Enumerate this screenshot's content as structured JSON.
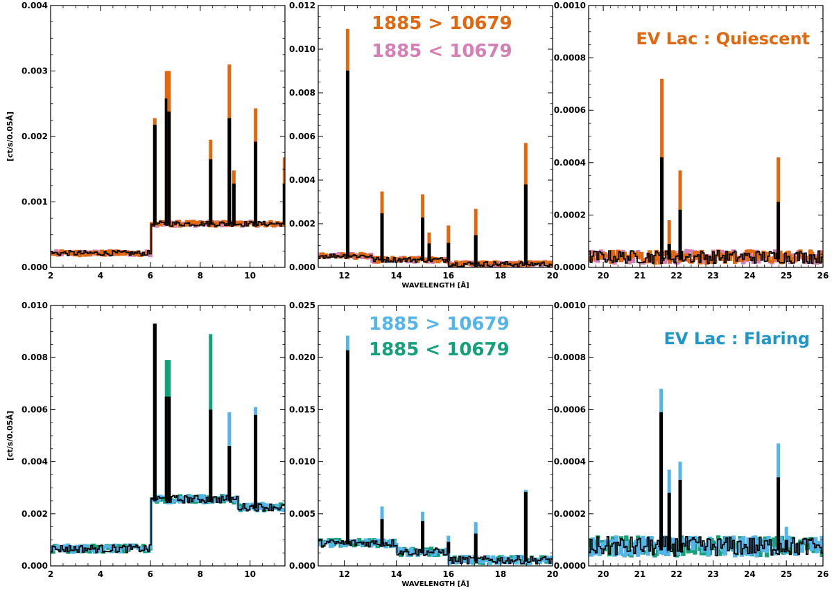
{
  "colors": {
    "orange": "#e1680f",
    "pink": "#d67fb4",
    "blue": "#55b4e8",
    "green": "#13a07a",
    "title_orange": "#e1680f",
    "title_blue": "#1f96c9",
    "black": "#000000"
  },
  "legend_quiescent": {
    "line1": "1885 > 10679",
    "line2": "1885 < 10679"
  },
  "legend_flaring": {
    "line1": "1885 > 10679",
    "line2": "1885 < 10679"
  },
  "title_quiescent": "EV Lac : Quiescent",
  "title_flaring": "EV Lac : Flaring",
  "chart_data": [
    {
      "type": "line",
      "row": "quiescent",
      "xlim": [
        2,
        11.4
      ],
      "ylim": [
        0,
        0.004
      ],
      "xticks": [
        "2",
        "4",
        "6",
        "8",
        "10"
      ],
      "yticks": [
        "0.000",
        "0.001",
        "0.002",
        "0.003",
        "0.004"
      ],
      "ylabel": "[ct/s/0.05Å]",
      "xlabel": "",
      "baseline": 0.0002,
      "peaks": [
        {
          "x": 6.18,
          "color": "orange",
          "top": 0.00228,
          "black": 0.00218
        },
        {
          "x": 6.65,
          "color": "orange",
          "top": 0.003,
          "black": 0.00258
        },
        {
          "x": 6.75,
          "color": "orange",
          "top": 0.003,
          "black": 0.00238
        },
        {
          "x": 8.42,
          "color": "orange",
          "top": 0.00195,
          "black": 0.00165
        },
        {
          "x": 9.17,
          "color": "orange",
          "top": 0.0031,
          "black": 0.00228
        },
        {
          "x": 9.35,
          "color": "orange",
          "top": 0.00148,
          "black": 0.00128
        },
        {
          "x": 10.22,
          "color": "orange",
          "top": 0.00243,
          "black": 0.00192
        },
        {
          "x": 11.38,
          "color": "orange",
          "top": 0.00168,
          "black": 0.00128
        }
      ]
    },
    {
      "type": "line",
      "row": "quiescent",
      "xlim": [
        11,
        20
      ],
      "ylim": [
        0,
        0.012
      ],
      "xticks": [
        "12",
        "14",
        "16",
        "18",
        "20"
      ],
      "yticks": [
        "0.000",
        "0.002",
        "0.004",
        "0.006",
        "0.008",
        "0.010",
        "0.012"
      ],
      "xlabel": "WAVELENGTH [Å]",
      "baseline": 0.0003,
      "peaks": [
        {
          "x": 12.13,
          "color": "orange",
          "top": 0.01093,
          "black": 0.00902
        },
        {
          "x": 13.45,
          "color": "orange",
          "top": 0.00348,
          "black": 0.00248
        },
        {
          "x": 15.01,
          "color": "orange",
          "top": 0.00335,
          "black": 0.00228
        },
        {
          "x": 15.26,
          "color": "orange",
          "top": 0.0016,
          "black": 0.0011
        },
        {
          "x": 16.0,
          "color": "orange",
          "top": 0.00192,
          "black": 0.00112
        },
        {
          "x": 17.05,
          "color": "orange",
          "top": 0.00268,
          "black": 0.00148
        },
        {
          "x": 18.97,
          "color": "orange",
          "top": 0.0057,
          "black": 0.0038
        }
      ]
    },
    {
      "type": "line",
      "row": "quiescent",
      "xlim": [
        19.6,
        26
      ],
      "ylim": [
        0,
        0.001
      ],
      "xticks": [
        "20",
        "21",
        "22",
        "23",
        "24",
        "25",
        "26"
      ],
      "yticks": [
        "0.0000",
        "0.0002",
        "0.0004",
        "0.0006",
        "0.0008",
        "0.0010"
      ],
      "xlabel": "",
      "baseline": 3e-05,
      "peaks": [
        {
          "x": 21.6,
          "color": "orange",
          "top": 0.00072,
          "black": 0.00042
        },
        {
          "x": 21.8,
          "color": "orange",
          "top": 0.00018,
          "black": 9e-05
        },
        {
          "x": 22.1,
          "color": "orange",
          "top": 0.00037,
          "black": 0.00022
        },
        {
          "x": 24.78,
          "color": "orange",
          "top": 0.00042,
          "black": 0.00025
        }
      ]
    },
    {
      "type": "line",
      "row": "flaring",
      "xlim": [
        2,
        11.4
      ],
      "ylim": [
        0,
        0.01
      ],
      "xticks": [
        "2",
        "4",
        "6",
        "8",
        "10"
      ],
      "yticks": [
        "0.000",
        "0.002",
        "0.004",
        "0.006",
        "0.008",
        "0.010"
      ],
      "ylabel": "[ct/s/0.05Å]",
      "xlabel": "",
      "baseline": 0.0006,
      "peaks": [
        {
          "x": 6.18,
          "color": "black",
          "top": 0.0093,
          "black": 0.0093
        },
        {
          "x": 6.65,
          "color": "green",
          "top": 0.0079,
          "black": 0.0065
        },
        {
          "x": 6.75,
          "color": "green",
          "top": 0.0079,
          "black": 0.0065
        },
        {
          "x": 8.42,
          "color": "green",
          "top": 0.0089,
          "black": 0.006
        },
        {
          "x": 9.17,
          "color": "blue",
          "top": 0.0059,
          "black": 0.0046
        },
        {
          "x": 10.22,
          "color": "blue",
          "top": 0.0061,
          "black": 0.0058
        }
      ]
    },
    {
      "type": "line",
      "row": "flaring",
      "xlim": [
        11,
        20
      ],
      "ylim": [
        0,
        0.025
      ],
      "xticks": [
        "12",
        "14",
        "16",
        "18",
        "20"
      ],
      "yticks": [
        "0.000",
        "0.005",
        "0.010",
        "0.015",
        "0.020",
        "0.025"
      ],
      "xlabel": "WAVELENGTH [Å]",
      "baseline": 0.0012,
      "peaks": [
        {
          "x": 12.13,
          "color": "blue",
          "top": 0.0221,
          "black": 0.0207
        },
        {
          "x": 13.45,
          "color": "blue",
          "top": 0.0057,
          "black": 0.0045
        },
        {
          "x": 15.01,
          "color": "blue",
          "top": 0.0052,
          "black": 0.0043
        },
        {
          "x": 16.0,
          "color": "blue",
          "top": 0.0029,
          "black": 0.0023
        },
        {
          "x": 17.05,
          "color": "blue",
          "top": 0.0042,
          "black": 0.0031
        },
        {
          "x": 18.97,
          "color": "blue",
          "top": 0.0073,
          "black": 0.0071
        }
      ]
    },
    {
      "type": "line",
      "row": "flaring",
      "xlim": [
        19.6,
        26
      ],
      "ylim": [
        0,
        0.001
      ],
      "xticks": [
        "20",
        "21",
        "22",
        "23",
        "24",
        "25",
        "26"
      ],
      "yticks": [
        "0.0000",
        "0.0002",
        "0.0004",
        "0.0006",
        "0.0008",
        "0.0010"
      ],
      "xlabel": "",
      "baseline": 6e-05,
      "peaks": [
        {
          "x": 21.58,
          "color": "blue",
          "top": 0.00068,
          "black": 0.00059
        },
        {
          "x": 21.8,
          "color": "blue",
          "top": 0.00037,
          "black": 0.00028
        },
        {
          "x": 22.1,
          "color": "blue",
          "top": 0.0004,
          "black": 0.00033
        },
        {
          "x": 24.78,
          "color": "blue",
          "top": 0.00047,
          "black": 0.00034
        },
        {
          "x": 25.0,
          "color": "blue",
          "top": 0.00015,
          "black": 0.0001
        }
      ]
    }
  ]
}
